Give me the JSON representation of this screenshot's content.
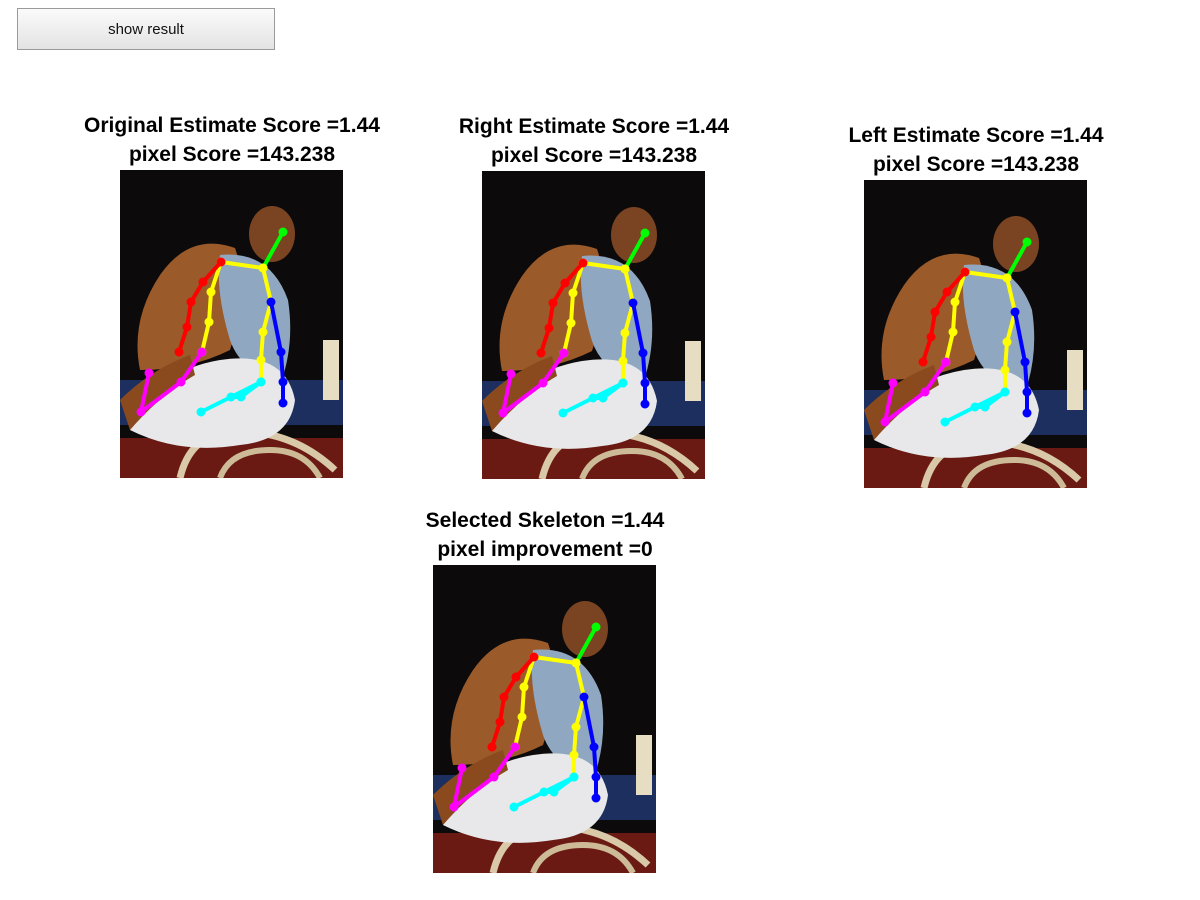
{
  "toolbar": {
    "show_result_label": "show result"
  },
  "panels": [
    {
      "title": "Original Estimate Score =1.44",
      "subtitle": "pixel Score =143.238"
    },
    {
      "title": "Right Estimate Score =1.44",
      "subtitle": "pixel Score =143.238"
    },
    {
      "title": "Left Estimate Score =1.44",
      "subtitle": "pixel Score =143.238"
    },
    {
      "title": "Selected Skeleton =1.44",
      "subtitle": "pixel improvement =0"
    }
  ],
  "skeleton_colors": {
    "head": "#00ff00",
    "torso": "#ffff00",
    "right_arm": "#ff0000",
    "left_arm": "#0000ff",
    "right_leg": "#ff00ff",
    "left_leg": "#00ffff"
  }
}
